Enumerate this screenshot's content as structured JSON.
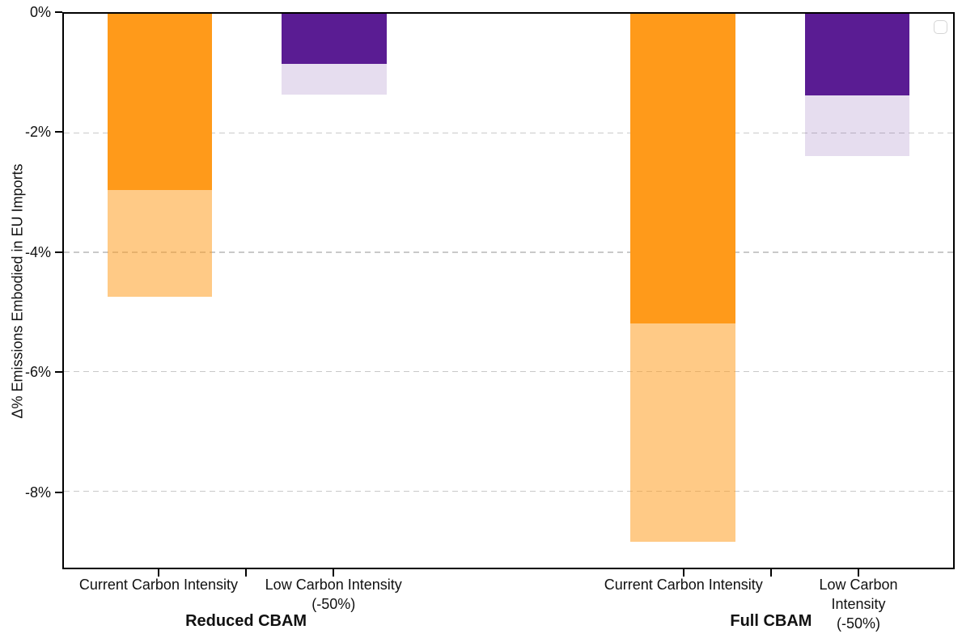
{
  "chart_data": {
    "type": "stacked-bar",
    "title": "",
    "ylabel": "Δ% Emissions Embodied in EU Imports",
    "ylim": [
      -9.28,
      0
    ],
    "xlim": [
      -0.55,
      4.55
    ],
    "bar_width": 0.6,
    "grid": {
      "horizontal": true,
      "style": "dashed",
      "color": "#c9c9c9"
    },
    "legend": {
      "visible": true,
      "entries": []
    },
    "yticks": [
      {
        "value": 0,
        "label": "0%"
      },
      {
        "value": -2,
        "label": "-2%"
      },
      {
        "value": -4,
        "label": "-4%"
      },
      {
        "value": -6,
        "label": "-6%"
      },
      {
        "value": -8,
        "label": "-8%"
      }
    ],
    "xticks_minor": [
      0.5,
      3.5
    ],
    "groups": [
      {
        "id": "reduced-cbam",
        "label": "Reduced CBAM",
        "label_x": 0.5,
        "bars": [
          {
            "id": "current-carbon-intensity",
            "x": 0,
            "label_lines": [
              "Current Carbon Intensity"
            ],
            "segments": [
              {
                "name": "segment-1",
                "value": -2.96,
                "color": "#ff9a1a"
              },
              {
                "name": "segment-2",
                "value": -1.78,
                "color": "rgba(255,154,26,0.53)"
              }
            ],
            "total": -4.74
          },
          {
            "id": "low-carbon-intensity",
            "x": 1,
            "label_lines": [
              "Low Carbon Intensity",
              "(-50%)"
            ],
            "segments": [
              {
                "name": "segment-1",
                "value": -0.84,
                "color": "#5a1c93"
              },
              {
                "name": "segment-2",
                "value": -0.51,
                "color": "rgba(90,28,147,0.15)"
              }
            ],
            "total": -1.35
          }
        ]
      },
      {
        "id": "full-cbam",
        "label": "Full CBAM",
        "label_x": 3.5,
        "bars": [
          {
            "id": "current-carbon-intensity",
            "x": 3,
            "label_lines": [
              "Current Carbon Intensity"
            ],
            "segments": [
              {
                "name": "segment-1",
                "value": -5.19,
                "color": "#ff9a1a"
              },
              {
                "name": "segment-2",
                "value": -3.66,
                "color": "rgba(255,154,26,0.53)"
              }
            ],
            "total": -8.85
          },
          {
            "id": "low-carbon-intensity",
            "x": 4,
            "label_lines": [
              "Low Carbon Intensity",
              "(-50%)"
            ],
            "segments": [
              {
                "name": "segment-1",
                "value": -1.37,
                "color": "#5a1c93"
              },
              {
                "name": "segment-2",
                "value": -1.01,
                "color": "rgba(90,28,147,0.15)"
              }
            ],
            "total": -2.38
          }
        ]
      }
    ]
  }
}
